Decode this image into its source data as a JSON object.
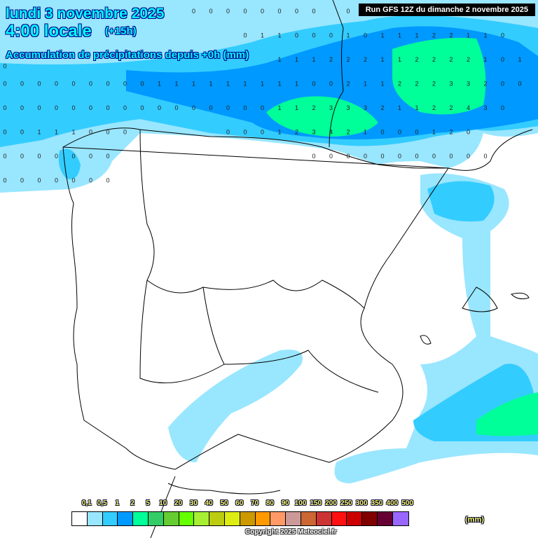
{
  "header": {
    "date": "lundi 3 novembre 2025",
    "time": "4:00 locale",
    "offset": "(+15h)",
    "parameter": "Accumulation de précipitations depuis +0h (mm)",
    "run": "Run GFS 12Z du dimanche 2 novembre 2025"
  },
  "legend": {
    "labels": [
      "0,1",
      "0,5",
      "1",
      "2",
      "5",
      "10",
      "20",
      "30",
      "40",
      "50",
      "60",
      "70",
      "80",
      "90",
      "100",
      "150",
      "200",
      "250",
      "300",
      "350",
      "400",
      "500"
    ],
    "colors": [
      "#ffffff",
      "#99e6ff",
      "#33ccff",
      "#0099ff",
      "#00ff99",
      "#33cc66",
      "#66cc33",
      "#66ff00",
      "#a6ef33",
      "#bbcc11",
      "#dded11",
      "#cc9900",
      "#ff9900",
      "#ff9966",
      "#cc9999",
      "#cc6633",
      "#cc3333",
      "#ff1111",
      "#cc0000",
      "#800000",
      "#660033",
      "#9966ff"
    ],
    "unit": "(mm)"
  },
  "copyright": "Copyright 2025 Meteociel.fr",
  "values": {
    "rows": [
      [
        "",
        "",
        "",
        "",
        "",
        "",
        "",
        "",
        "",
        "",
        "",
        "0",
        "0",
        "0",
        "0",
        "0",
        "0",
        "0",
        "0",
        "",
        "0",
        "",
        "",
        "",
        "",
        "",
        "",
        "",
        "",
        "",
        "",
        ""
      ],
      [
        "0",
        "",
        "",
        "",
        "",
        "",
        "",
        "",
        "",
        "",
        "",
        "",
        "",
        "",
        "0",
        "1",
        "1",
        "0",
        "0",
        "0",
        "1",
        "0",
        "1",
        "1",
        "1",
        "2",
        "2",
        "1",
        "1",
        "0",
        "",
        ""
      ],
      [
        "",
        "",
        "",
        "",
        "",
        "",
        "",
        "",
        "",
        "",
        "",
        "",
        "",
        "",
        "",
        "",
        "1",
        "1",
        "1",
        "2",
        "2",
        "2",
        "1",
        "1",
        "2",
        "2",
        "2",
        "2",
        "1",
        "0",
        "1",
        ""
      ],
      [
        "0",
        "0",
        "0",
        "0",
        "0",
        "0",
        "0",
        "0",
        "0",
        "1",
        "1",
        "1",
        "1",
        "1",
        "1",
        "1",
        "1",
        "1",
        "0",
        "0",
        "2",
        "1",
        "1",
        "2",
        "2",
        "2",
        "3",
        "3",
        "2",
        "0",
        "0",
        ""
      ],
      [
        "0",
        "0",
        "0",
        "0",
        "0",
        "0",
        "0",
        "0",
        "0",
        "0",
        "0",
        "0",
        "0",
        "0",
        "0",
        "0",
        "1",
        "1",
        "2",
        "3",
        "3",
        "3",
        "2",
        "1",
        "1",
        "2",
        "2",
        "4",
        "3",
        "0",
        "",
        ""
      ],
      [
        "0",
        "0",
        "1",
        "1",
        "1",
        "0",
        "0",
        "0",
        "",
        "",
        "",
        "",
        "",
        "0",
        "0",
        "0",
        "1",
        "2",
        "3",
        "4",
        "2",
        "1",
        "0",
        "0",
        "0",
        "1",
        "2",
        "0",
        "",
        "",
        "",
        ""
      ],
      [
        "0",
        "0",
        "0",
        "0",
        "0",
        "0",
        "0",
        "",
        "",
        "",
        "",
        "",
        "",
        "",
        "",
        "",
        "",
        "",
        "0",
        "0",
        "0",
        "0",
        "0",
        "0",
        "0",
        "0",
        "0",
        "0",
        "0",
        "",
        "",
        ""
      ],
      [
        "0",
        "0",
        "0",
        "0",
        "0",
        "0",
        "0",
        "",
        "",
        "",
        "",
        "",
        "",
        "",
        "",
        "",
        "",
        "",
        "",
        "",
        "",
        "",
        "",
        "",
        "",
        "",
        "",
        "",
        "",
        "",
        "",
        ""
      ]
    ]
  }
}
